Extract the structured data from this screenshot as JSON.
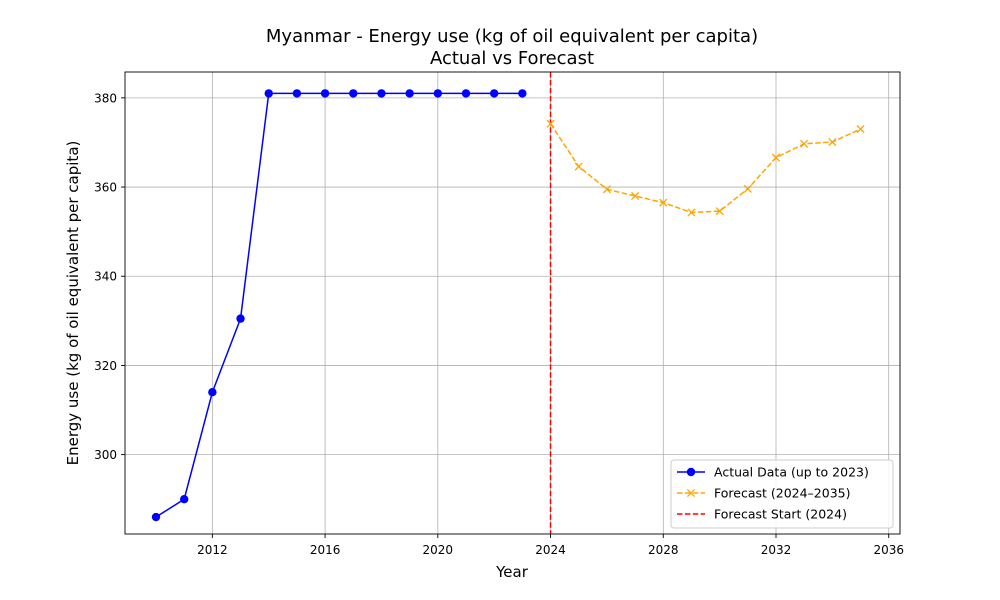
{
  "chart_data": {
    "type": "line",
    "title": "Myanmar - Energy use (kg of oil equivalent per capita)",
    "subtitle": "Actual vs Forecast",
    "xlabel": "Year",
    "ylabel": "Energy use (kg of oil equivalent per capita)",
    "xlim": [
      2008.9,
      2036.4
    ],
    "ylim": [
      282.2,
      385.8
    ],
    "x_ticks": [
      2012,
      2016,
      2020,
      2024,
      2028,
      2032,
      2036
    ],
    "y_ticks": [
      300,
      320,
      340,
      360,
      380
    ],
    "grid": true,
    "legend_position": "lower-right",
    "series": [
      {
        "name": "Actual Data (up to 2023)",
        "color": "#0000ff",
        "style": "solid",
        "marker": "circle",
        "x": [
          2010,
          2011,
          2012,
          2013,
          2014,
          2015,
          2016,
          2017,
          2018,
          2019,
          2020,
          2021,
          2022,
          2023
        ],
        "y": [
          286.0,
          290.0,
          314.0,
          330.5,
          381.0,
          381.0,
          381.0,
          381.0,
          381.0,
          381.0,
          381.0,
          381.0,
          381.0,
          381.0
        ]
      },
      {
        "name": "Forecast (2024–2035)",
        "color": "#ffa500",
        "style": "dashed",
        "marker": "x",
        "x": [
          2024,
          2025,
          2026,
          2027,
          2028,
          2029,
          2030,
          2031,
          2032,
          2033,
          2034,
          2035
        ],
        "y": [
          374.2,
          364.6,
          359.5,
          358.0,
          356.5,
          354.3,
          354.6,
          359.6,
          366.6,
          369.7,
          370.1,
          373.0
        ]
      }
    ],
    "vlines": [
      {
        "name": "Forecast Start (2024)",
        "x": 2024,
        "color": "#ff0000",
        "style": "dashed"
      }
    ]
  }
}
